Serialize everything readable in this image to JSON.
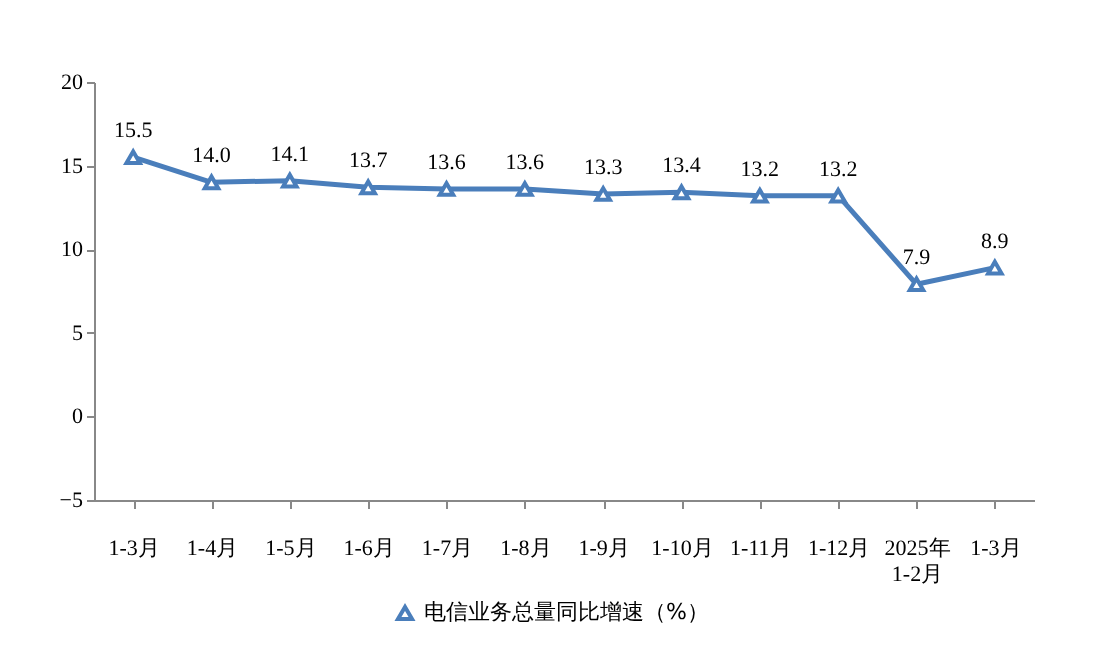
{
  "chart_data": {
    "type": "line",
    "categories": [
      "1-3月",
      "1-4月",
      "1-5月",
      "1-6月",
      "1-7月",
      "1-8月",
      "1-9月",
      "1-10月",
      "1-11月",
      "1-12月",
      "2025年\n1-2月",
      "1-3月"
    ],
    "series": [
      {
        "name": "电信业务总量同比增速（%）",
        "color": "#4a7ebb",
        "values": [
          15.5,
          14.0,
          14.1,
          13.7,
          13.6,
          13.6,
          13.3,
          13.4,
          13.2,
          13.2,
          7.9,
          8.9
        ],
        "value_labels": [
          "15.5",
          "14.0",
          "14.1",
          "13.7",
          "13.6",
          "13.6",
          "13.3",
          "13.4",
          "13.2",
          "13.2",
          "7.9",
          "8.9"
        ]
      }
    ],
    "ylim": [
      -5,
      20
    ],
    "yticks": [
      -5,
      0,
      5,
      10,
      15,
      20
    ],
    "grid": false,
    "legend": "bottom",
    "marker": "triangle",
    "line_style": "solid"
  }
}
